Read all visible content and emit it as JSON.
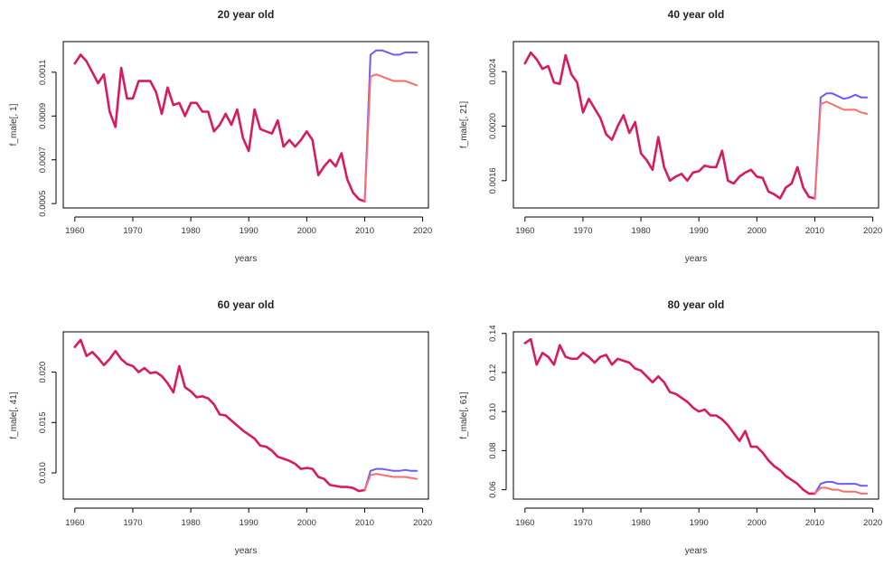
{
  "colors": {
    "red": "#ff6b6b",
    "blue": "#6a5cff",
    "overlap": "#d81b60",
    "axis": "#000000"
  },
  "chart_data": [
    {
      "type": "line",
      "title": "20 year old",
      "xlabel": "years",
      "ylabel": "f_male[, 1]",
      "xlim": [
        1958,
        2021
      ],
      "ylim": [
        0.00048,
        0.00124
      ],
      "xticks": [
        1960,
        1970,
        1980,
        1990,
        2000,
        2010,
        2020
      ],
      "xtick_labels": [
        "1960",
        "1970",
        "1980",
        "1990",
        "2000",
        "2010",
        "2020"
      ],
      "yticks": [
        0.0005,
        0.0007,
        0.0009,
        0.0011
      ],
      "ytick_labels": [
        "0.0005",
        "0.0007",
        "0.0009",
        "0.0011"
      ],
      "history": {
        "x": [
          1960,
          1961,
          1962,
          1963,
          1964,
          1965,
          1966,
          1967,
          1968,
          1969,
          1970,
          1971,
          1972,
          1973,
          1974,
          1975,
          1976,
          1977,
          1978,
          1979,
          1980,
          1981,
          1982,
          1983,
          1984,
          1985,
          1986,
          1987,
          1988,
          1989,
          1990,
          1991,
          1992,
          1993,
          1994,
          1995,
          1996,
          1997,
          1998,
          1999,
          2000,
          2001,
          2002,
          2003,
          2004,
          2005,
          2006,
          2007,
          2008,
          2009,
          2010
        ],
        "y": [
          0.00114,
          0.00118,
          0.00115,
          0.0011,
          0.00105,
          0.00109,
          0.00092,
          0.00085,
          0.00112,
          0.00098,
          0.00098,
          0.00106,
          0.00106,
          0.00106,
          0.00101,
          0.00091,
          0.00103,
          0.00095,
          0.00096,
          0.0009,
          0.00096,
          0.00096,
          0.00092,
          0.00092,
          0.00083,
          0.00086,
          0.00091,
          0.00086,
          0.00093,
          0.0008,
          0.00074,
          0.00093,
          0.00084,
          0.00083,
          0.00082,
          0.00088,
          0.00076,
          0.00079,
          0.00076,
          0.00079,
          0.00083,
          0.00079,
          0.00063,
          0.00067,
          0.0007,
          0.00067,
          0.00073,
          0.00061,
          0.00055,
          0.00052,
          0.00051
        ]
      },
      "forecast_blue": {
        "x": [
          2010,
          2011,
          2012,
          2013,
          2014,
          2015,
          2016,
          2017,
          2018,
          2019
        ],
        "y": [
          0.00051,
          0.00118,
          0.0012,
          0.0012,
          0.00119,
          0.00118,
          0.00118,
          0.00119,
          0.00119,
          0.00119
        ]
      },
      "forecast_red": {
        "x": [
          2010,
          2011,
          2012,
          2013,
          2014,
          2015,
          2016,
          2017,
          2018,
          2019
        ],
        "y": [
          0.00051,
          0.00108,
          0.00109,
          0.00108,
          0.00107,
          0.00106,
          0.00106,
          0.00106,
          0.00105,
          0.00104
        ]
      }
    },
    {
      "type": "line",
      "title": "40 year old",
      "xlabel": "years",
      "ylabel": "f_male[, 21]",
      "xlim": [
        1958,
        2021
      ],
      "ylim": [
        0.0014,
        0.00262
      ],
      "xticks": [
        1960,
        1970,
        1980,
        1990,
        2000,
        2010,
        2020
      ],
      "xtick_labels": [
        "1960",
        "1970",
        "1980",
        "1990",
        "2000",
        "2010",
        "2020"
      ],
      "yticks": [
        0.0016,
        0.002,
        0.0024
      ],
      "ytick_labels": [
        "0.0016",
        "0.0020",
        "0.0024"
      ],
      "history": {
        "x": [
          1960,
          1961,
          1962,
          1963,
          1964,
          1965,
          1966,
          1967,
          1968,
          1969,
          1970,
          1971,
          1972,
          1973,
          1974,
          1975,
          1976,
          1977,
          1978,
          1979,
          1980,
          1981,
          1982,
          1983,
          1984,
          1985,
          1986,
          1987,
          1988,
          1989,
          1990,
          1991,
          1992,
          1993,
          1994,
          1995,
          1996,
          1997,
          1998,
          1999,
          2000,
          2001,
          2002,
          2003,
          2004,
          2005,
          2006,
          2007,
          2008,
          2009,
          2010
        ],
        "y": [
          0.00246,
          0.00254,
          0.00249,
          0.00242,
          0.00244,
          0.00232,
          0.00231,
          0.00252,
          0.00238,
          0.00232,
          0.0021,
          0.0022,
          0.00213,
          0.00206,
          0.00194,
          0.0019,
          0.002,
          0.00208,
          0.00195,
          0.00203,
          0.0018,
          0.00175,
          0.00168,
          0.00192,
          0.0017,
          0.0016,
          0.00163,
          0.00165,
          0.0016,
          0.00166,
          0.00167,
          0.00171,
          0.0017,
          0.0017,
          0.00182,
          0.0016,
          0.00158,
          0.00163,
          0.00166,
          0.00168,
          0.00163,
          0.00162,
          0.00152,
          0.0015,
          0.00147,
          0.00155,
          0.00158,
          0.0017,
          0.00155,
          0.00148,
          0.00147
        ]
      },
      "forecast_blue": {
        "x": [
          2010,
          2011,
          2012,
          2013,
          2014,
          2015,
          2016,
          2017,
          2018,
          2019
        ],
        "y": [
          0.00147,
          0.00221,
          0.00224,
          0.00224,
          0.00222,
          0.0022,
          0.00221,
          0.00223,
          0.00221,
          0.00221
        ]
      },
      "forecast_red": {
        "x": [
          2010,
          2011,
          2012,
          2013,
          2014,
          2015,
          2016,
          2017,
          2018,
          2019
        ],
        "y": [
          0.00147,
          0.00216,
          0.00218,
          0.00216,
          0.00214,
          0.00212,
          0.00212,
          0.00212,
          0.0021,
          0.00209
        ]
      }
    },
    {
      "type": "line",
      "title": "60 year old",
      "xlabel": "years",
      "ylabel": "f_male[, 41]",
      "xlim": [
        1958,
        2021
      ],
      "ylim": [
        0.0074,
        0.024
      ],
      "xticks": [
        1960,
        1970,
        1980,
        1990,
        2000,
        2010,
        2020
      ],
      "xtick_labels": [
        "1960",
        "1970",
        "1980",
        "1990",
        "2000",
        "2010",
        "2020"
      ],
      "yticks": [
        0.01,
        0.015,
        0.02
      ],
      "ytick_labels": [
        "0.010",
        "0.015",
        "0.020"
      ],
      "history": {
        "x": [
          1960,
          1961,
          1962,
          1963,
          1964,
          1965,
          1966,
          1967,
          1968,
          1969,
          1970,
          1971,
          1972,
          1973,
          1974,
          1975,
          1976,
          1977,
          1978,
          1979,
          1980,
          1981,
          1982,
          1983,
          1984,
          1985,
          1986,
          1987,
          1988,
          1989,
          1990,
          1991,
          1992,
          1993,
          1994,
          1995,
          1996,
          1997,
          1998,
          1999,
          2000,
          2001,
          2002,
          2003,
          2004,
          2005,
          2006,
          2007,
          2008,
          2009,
          2010
        ],
        "y": [
          0.0225,
          0.0232,
          0.0216,
          0.022,
          0.0214,
          0.0207,
          0.0213,
          0.0221,
          0.0213,
          0.0208,
          0.0206,
          0.02,
          0.0204,
          0.0199,
          0.02,
          0.0196,
          0.0189,
          0.018,
          0.0206,
          0.0185,
          0.0181,
          0.0175,
          0.0176,
          0.0174,
          0.0168,
          0.0158,
          0.0157,
          0.0152,
          0.0147,
          0.0142,
          0.0138,
          0.0134,
          0.0127,
          0.0126,
          0.0122,
          0.0116,
          0.0114,
          0.0112,
          0.0109,
          0.0104,
          0.0105,
          0.0104,
          0.0096,
          0.0094,
          0.0088,
          0.0087,
          0.0086,
          0.0086,
          0.0085,
          0.0082,
          0.0083
        ]
      },
      "forecast_blue": {
        "x": [
          2010,
          2011,
          2012,
          2013,
          2014,
          2015,
          2016,
          2017,
          2018,
          2019
        ],
        "y": [
          0.0083,
          0.0102,
          0.0104,
          0.0104,
          0.0103,
          0.0102,
          0.0102,
          0.0103,
          0.0102,
          0.0102
        ]
      },
      "forecast_red": {
        "x": [
          2010,
          2011,
          2012,
          2013,
          2014,
          2015,
          2016,
          2017,
          2018,
          2019
        ],
        "y": [
          0.0083,
          0.0098,
          0.0099,
          0.0098,
          0.0097,
          0.0096,
          0.0096,
          0.0096,
          0.0095,
          0.0094
        ]
      }
    },
    {
      "type": "line",
      "title": "80 year old",
      "xlabel": "years",
      "ylabel": "f_male[, 61]",
      "xlim": [
        1958,
        2021
      ],
      "ylim": [
        0.0552,
        0.1408
      ],
      "xticks": [
        1960,
        1970,
        1980,
        1990,
        2000,
        2010,
        2020
      ],
      "xtick_labels": [
        "1960",
        "1970",
        "1980",
        "1990",
        "2000",
        "2010",
        "2020"
      ],
      "yticks": [
        0.06,
        0.08,
        0.1,
        0.12,
        0.14
      ],
      "ytick_labels": [
        "0.06",
        "0.08",
        "0.10",
        "0.12",
        "0.14"
      ],
      "history": {
        "x": [
          1960,
          1961,
          1962,
          1963,
          1964,
          1965,
          1966,
          1967,
          1968,
          1969,
          1970,
          1971,
          1972,
          1973,
          1974,
          1975,
          1976,
          1977,
          1978,
          1979,
          1980,
          1981,
          1982,
          1983,
          1984,
          1985,
          1986,
          1987,
          1988,
          1989,
          1990,
          1991,
          1992,
          1993,
          1994,
          1995,
          1996,
          1997,
          1998,
          1999,
          2000,
          2001,
          2002,
          2003,
          2004,
          2005,
          2006,
          2007,
          2008,
          2009,
          2010
        ],
        "y": [
          0.135,
          0.137,
          0.124,
          0.13,
          0.128,
          0.124,
          0.134,
          0.128,
          0.127,
          0.127,
          0.13,
          0.128,
          0.125,
          0.128,
          0.129,
          0.124,
          0.127,
          0.126,
          0.125,
          0.122,
          0.121,
          0.118,
          0.115,
          0.118,
          0.115,
          0.11,
          0.109,
          0.107,
          0.105,
          0.102,
          0.1,
          0.101,
          0.098,
          0.098,
          0.096,
          0.093,
          0.089,
          0.085,
          0.09,
          0.082,
          0.082,
          0.079,
          0.075,
          0.072,
          0.07,
          0.067,
          0.065,
          0.063,
          0.06,
          0.058,
          0.058
        ]
      },
      "forecast_blue": {
        "x": [
          2010,
          2011,
          2012,
          2013,
          2014,
          2015,
          2016,
          2017,
          2018,
          2019
        ],
        "y": [
          0.058,
          0.063,
          0.064,
          0.064,
          0.063,
          0.063,
          0.063,
          0.063,
          0.062,
          0.062
        ]
      },
      "forecast_red": {
        "x": [
          2010,
          2011,
          2012,
          2013,
          2014,
          2015,
          2016,
          2017,
          2018,
          2019
        ],
        "y": [
          0.058,
          0.061,
          0.061,
          0.06,
          0.06,
          0.059,
          0.059,
          0.059,
          0.058,
          0.058
        ]
      }
    }
  ]
}
